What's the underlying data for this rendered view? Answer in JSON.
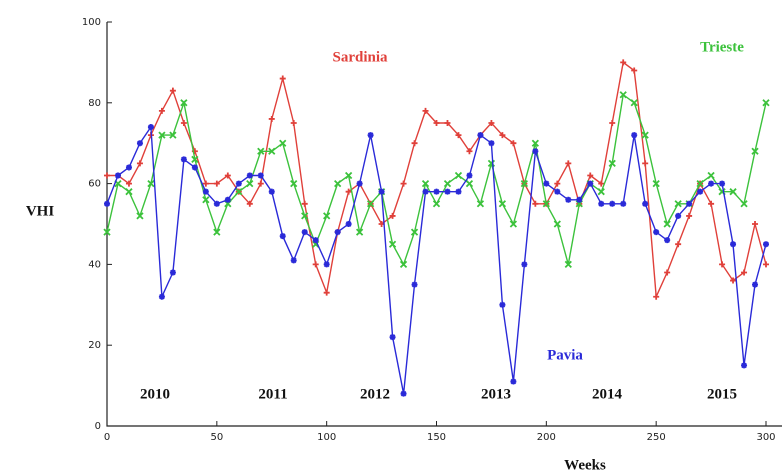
{
  "chart_data": {
    "type": "line",
    "ylabel": "VHI",
    "xlabel": "Weeks",
    "xlim": [
      0,
      300
    ],
    "ylim": [
      0,
      100
    ],
    "xticks": [
      0,
      50,
      100,
      150,
      200,
      250,
      300
    ],
    "yticks": [
      0,
      20,
      40,
      60,
      80,
      100
    ],
    "annotations": [
      "2010",
      "2011",
      "2012",
      "2013",
      "2014",
      "2015"
    ],
    "x": [
      0,
      5,
      10,
      15,
      20,
      25,
      30,
      35,
      40,
      45,
      50,
      55,
      60,
      65,
      70,
      75,
      80,
      85,
      90,
      95,
      100,
      105,
      110,
      115,
      120,
      125,
      130,
      135,
      140,
      145,
      150,
      155,
      160,
      165,
      170,
      175,
      180,
      185,
      190,
      195,
      200,
      205,
      210,
      215,
      220,
      225,
      230,
      235,
      240,
      245,
      250,
      255,
      260,
      265,
      270,
      275,
      280,
      285,
      290,
      295,
      300
    ],
    "series": [
      {
        "name": "Sardinia",
        "color": "#e0403a",
        "marker": "+",
        "values": [
          62,
          62,
          60,
          65,
          72,
          78,
          83,
          75,
          68,
          60,
          60,
          62,
          58,
          55,
          60,
          76,
          86,
          75,
          55,
          40,
          33,
          48,
          58,
          60,
          55,
          50,
          52,
          60,
          70,
          78,
          75,
          75,
          72,
          68,
          72,
          75,
          72,
          70,
          60,
          55,
          55,
          60,
          65,
          55,
          62,
          60,
          75,
          90,
          88,
          65,
          32,
          38,
          45,
          52,
          60,
          55,
          40,
          36,
          38,
          50,
          40
        ]
      },
      {
        "name": "Trieste",
        "color": "#3cc23c",
        "marker": "x",
        "values": [
          48,
          60,
          58,
          52,
          60,
          72,
          72,
          80,
          66,
          56,
          48,
          55,
          58,
          60,
          68,
          68,
          70,
          60,
          52,
          45,
          52,
          60,
          62,
          48,
          55,
          58,
          45,
          40,
          48,
          60,
          55,
          60,
          62,
          60,
          55,
          65,
          55,
          50,
          60,
          70,
          55,
          50,
          40,
          55,
          60,
          58,
          65,
          82,
          80,
          72,
          60,
          50,
          55,
          55,
          60,
          62,
          58,
          58,
          55,
          68,
          80
        ]
      },
      {
        "name": "Pavia",
        "color": "#2a2ad8",
        "marker": "*",
        "values": [
          55,
          62,
          64,
          70,
          74,
          32,
          38,
          66,
          64,
          58,
          55,
          56,
          60,
          62,
          62,
          58,
          47,
          41,
          48,
          46,
          40,
          48,
          50,
          60,
          72,
          58,
          22,
          8,
          35,
          58,
          58,
          58,
          58,
          62,
          72,
          70,
          30,
          11,
          40,
          68,
          60,
          58,
          56,
          56,
          60,
          55,
          55,
          55,
          72,
          55,
          48,
          46,
          52,
          55,
          58,
          60,
          60,
          45,
          15,
          35,
          45
        ]
      }
    ]
  }
}
